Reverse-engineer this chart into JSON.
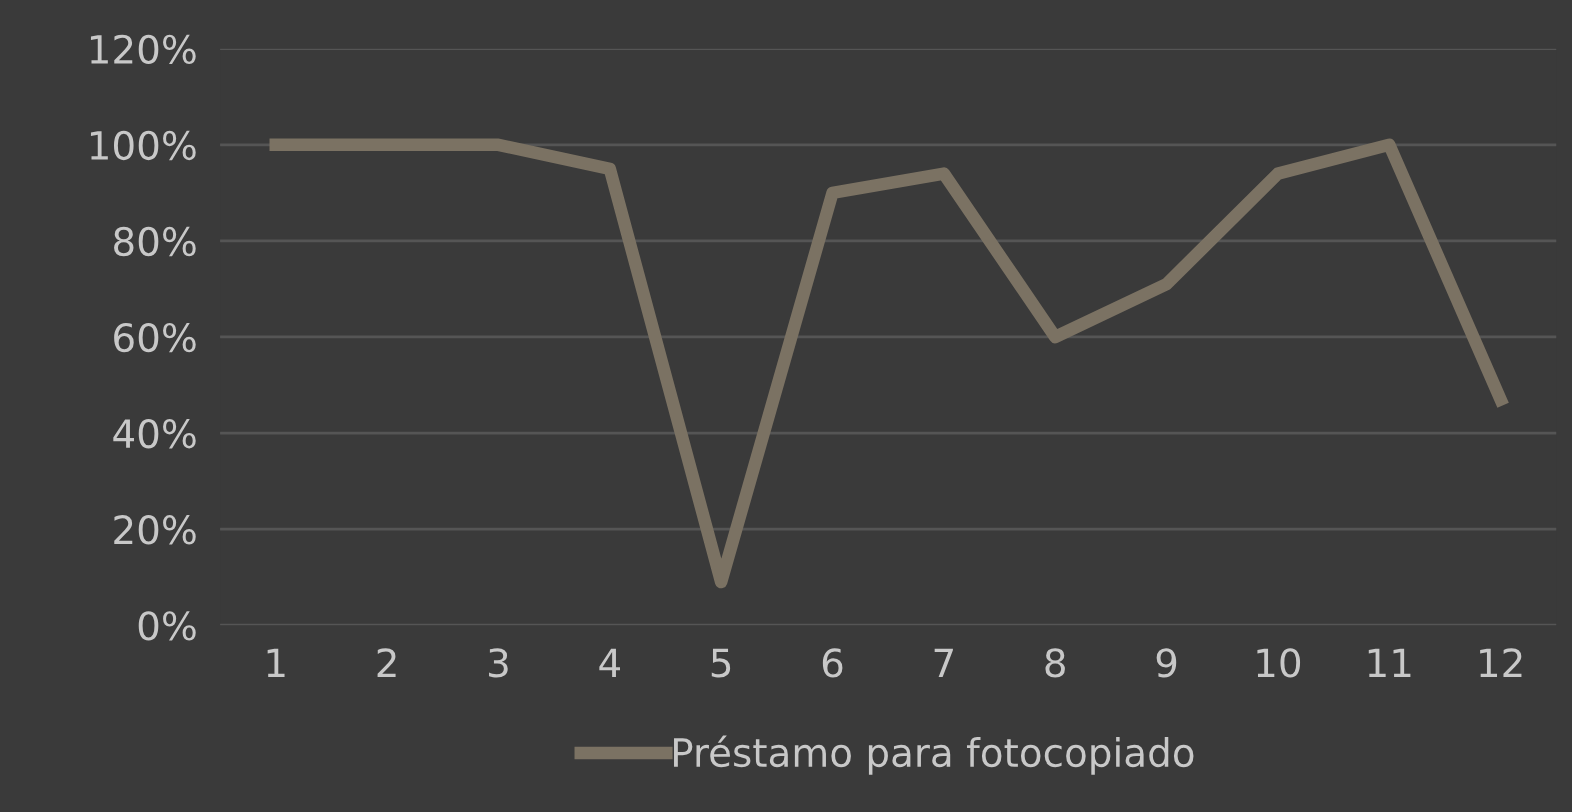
{
  "chart_data": {
    "type": "line",
    "categories": [
      "1",
      "2",
      "3",
      "4",
      "5",
      "6",
      "7",
      "8",
      "9",
      "10",
      "11",
      "12"
    ],
    "series": [
      {
        "name": "Préstamo para fotocopiado",
        "color": "#7b7263",
        "values": [
          100,
          100,
          100,
          95,
          9,
          90,
          94,
          60,
          71,
          94,
          100,
          47
        ]
      }
    ],
    "ylim": [
      0,
      120
    ],
    "yticks": [
      {
        "value": 0,
        "label": "0%"
      },
      {
        "value": 20,
        "label": "20%"
      },
      {
        "value": 40,
        "label": "40%"
      },
      {
        "value": 60,
        "label": "60%"
      },
      {
        "value": 80,
        "label": "80%"
      },
      {
        "value": 100,
        "label": "100%"
      },
      {
        "value": 120,
        "label": "120%"
      }
    ],
    "grid": "y",
    "legend": "bottom",
    "marker": "none",
    "line_style": "solid"
  }
}
